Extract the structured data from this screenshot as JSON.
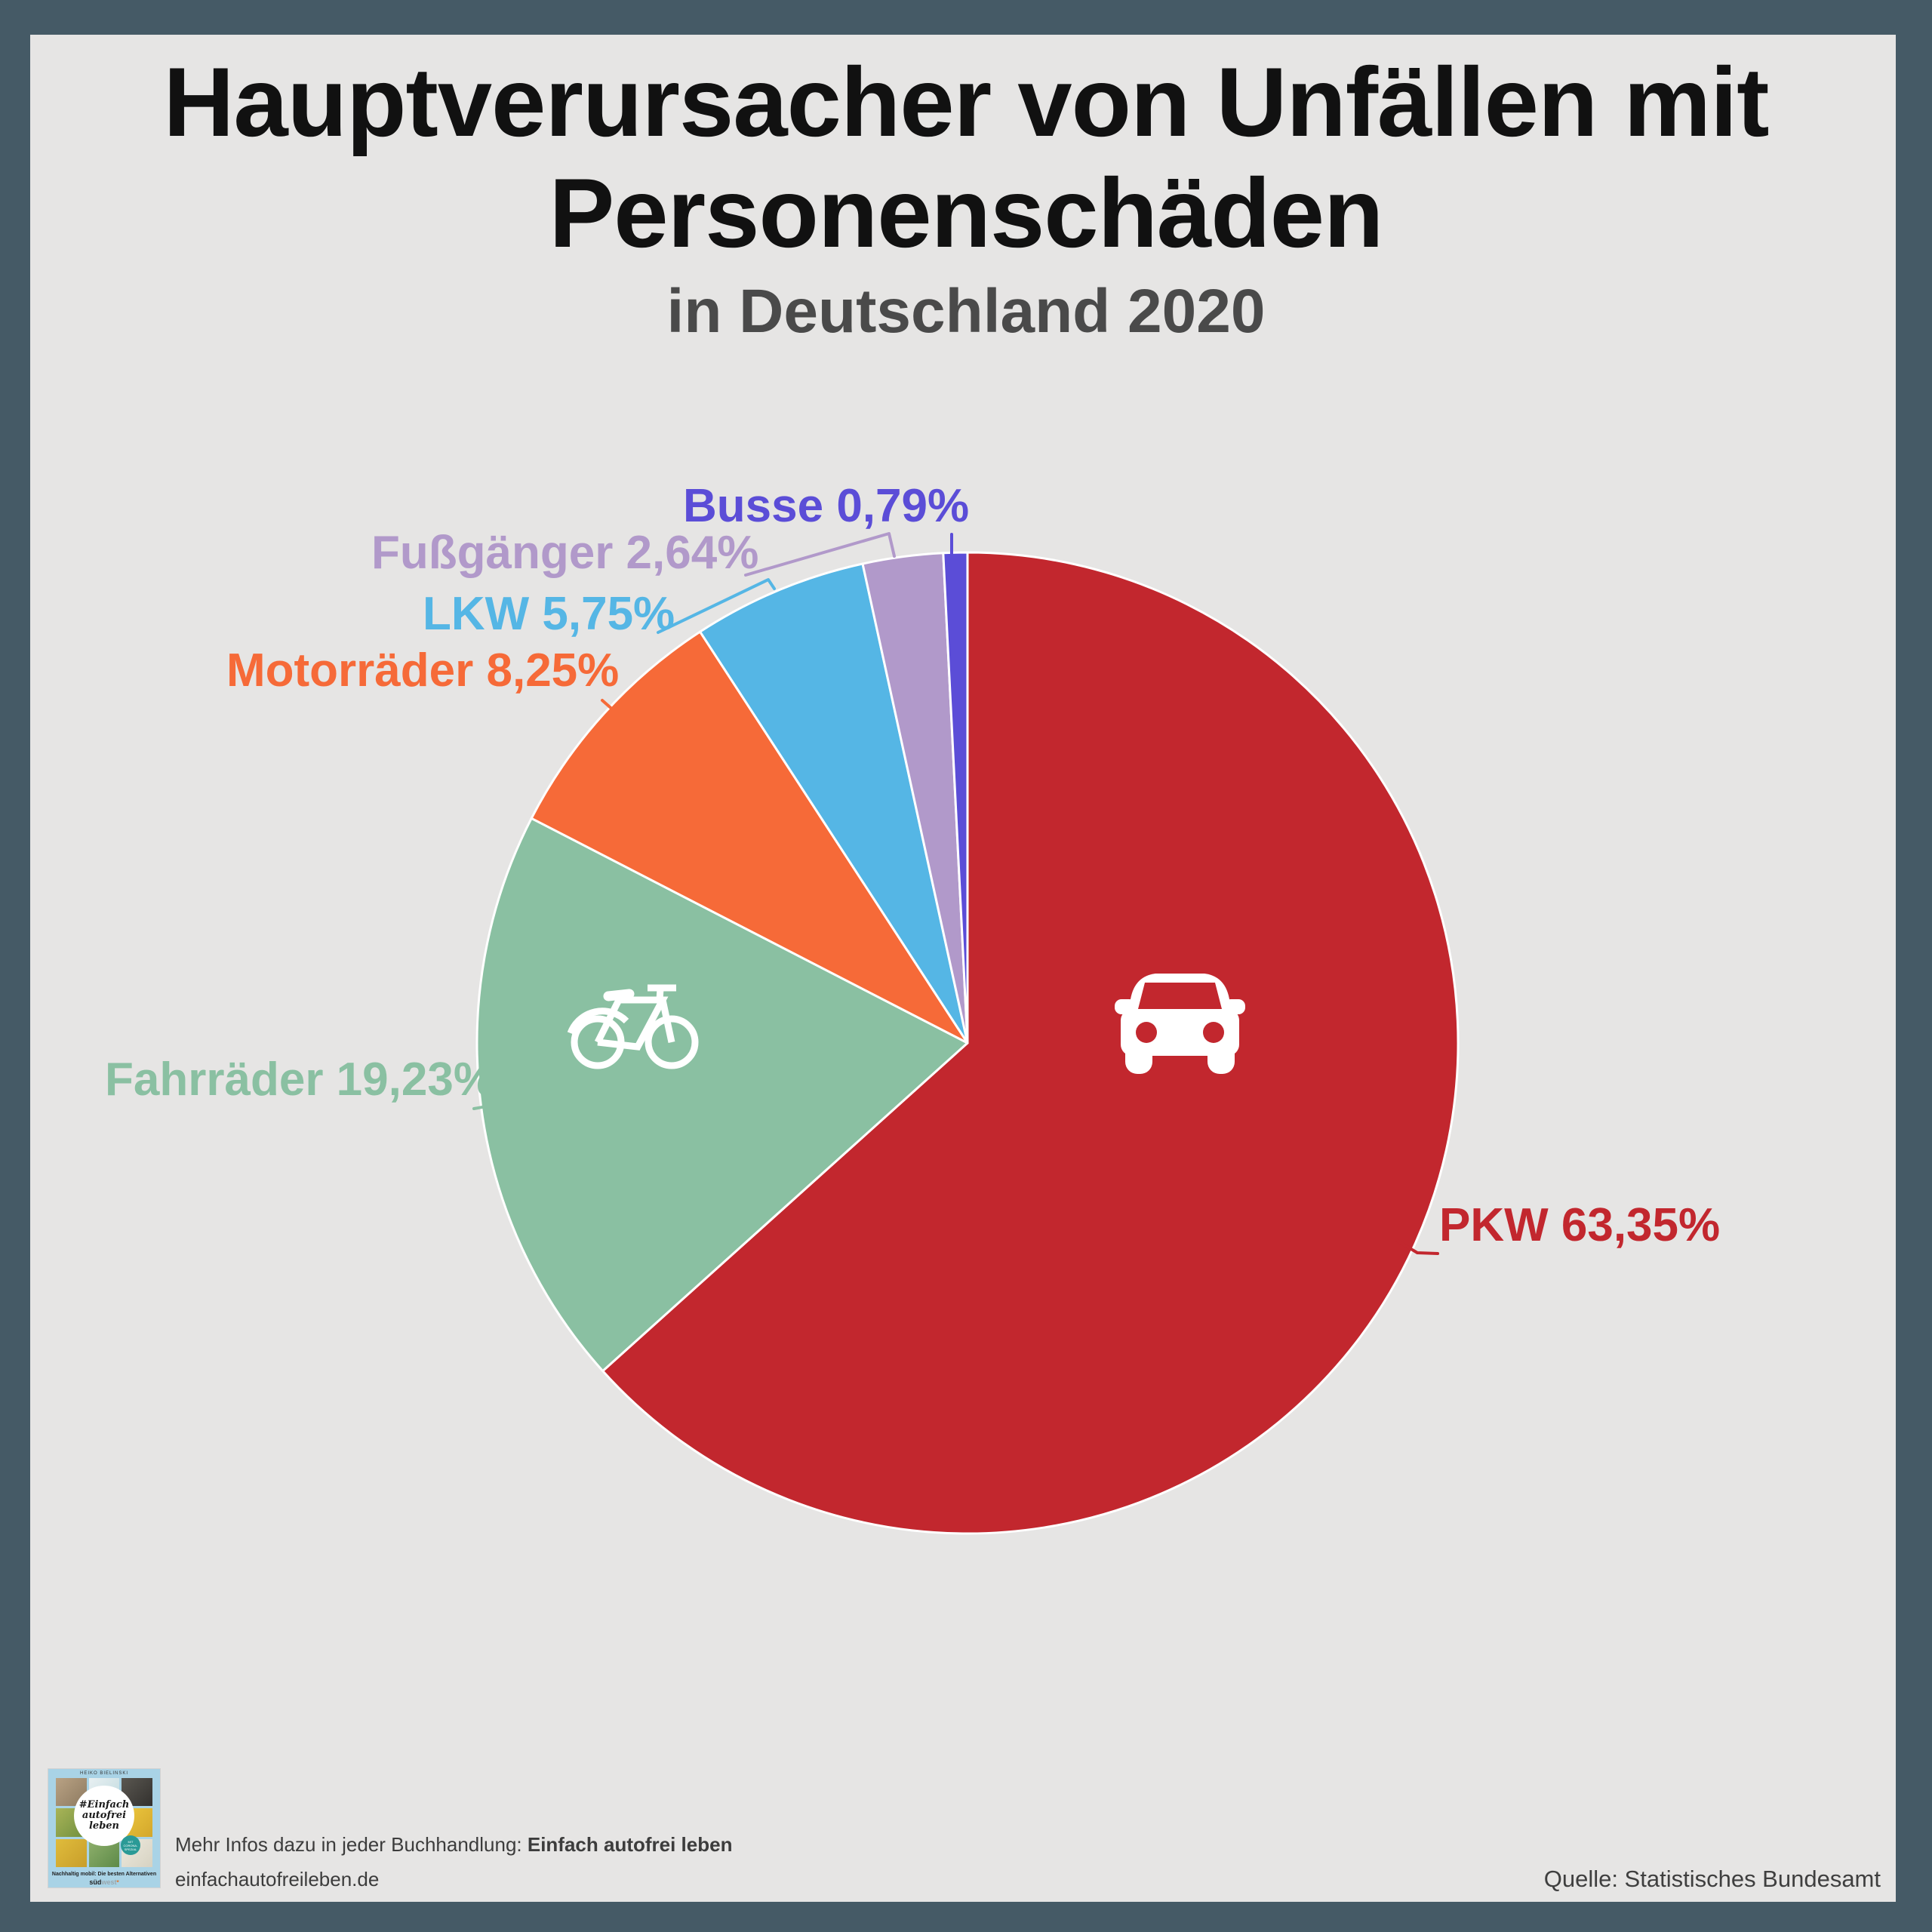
{
  "header": {
    "title_lines": [
      "Hauptverursacher von Unfällen mit",
      "Personenschäden"
    ],
    "subtitle": "in Deutschland 2020"
  },
  "chart_data": {
    "type": "pie",
    "title": "Hauptverursacher von Unfällen mit Personenschäden",
    "subtitle": "in Deutschland 2020",
    "unit": "%",
    "start_angle_deg": 0,
    "direction": "clockwise",
    "legend_position": "none",
    "labels_style": "outside-callout",
    "slices": [
      {
        "name": "PKW",
        "value": 63.35,
        "label": "PKW 63,35%",
        "color": "#c2272e",
        "icon": "car-icon"
      },
      {
        "name": "Fahrräder",
        "value": 19.23,
        "label": "Fahrräder 19,23%",
        "color": "#8ac0a2",
        "icon": "bicycle-icon"
      },
      {
        "name": "Motorräder",
        "value": 8.25,
        "label": "Motorräder 8,25%",
        "color": "#f66a38"
      },
      {
        "name": "LKW",
        "value": 5.75,
        "label": "LKW 5,75%",
        "color": "#55b6e5"
      },
      {
        "name": "Fußgänger",
        "value": 2.64,
        "label": "Fußgänger 2,64%",
        "color": "#b199ca"
      },
      {
        "name": "Busse",
        "value": 0.79,
        "label": "Busse 0,79%",
        "color": "#5b4dd7"
      }
    ]
  },
  "footer": {
    "promo_normal": "Mehr Infos dazu in jeder Buchhandlung: ",
    "promo_bold": "Einfach autofrei leben",
    "website": "einfachautofreileben.de",
    "source": "Quelle: Statistisches Bundesamt",
    "book_cover": {
      "author": "HEIKO BIELINSKI",
      "title": "#Einfach autofrei leben",
      "badge": "MIT CORONA- SPEZIAL",
      "tagline": "Nachhaltig mobil: Die besten Alternativen",
      "publisher_1": "süd",
      "publisher_2": "west",
      "publisher_star": "*"
    }
  },
  "colors": {
    "frame": "#455a66",
    "background": "#e6e5e4",
    "title_text": "#111111",
    "subtitle_text": "#4a4a4a",
    "slice_border": "#ffffff",
    "footer_text": "#3c3c3c",
    "source_text": "#3f3f3f"
  }
}
